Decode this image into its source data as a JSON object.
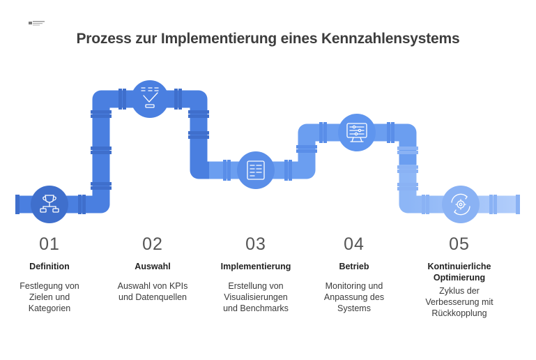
{
  "title": "Prozess zur Implementierung eines Kennzahlensystems",
  "colors": {
    "pipe_dark": "#4a7fe0",
    "pipe_mid": "#5f95ee",
    "pipe_light": "#8db6f6",
    "pipe_lightest": "#aecbfa",
    "icon_stroke": "#ffffff",
    "text": "#333333"
  },
  "steps": [
    {
      "number": "01",
      "heading": "Definition",
      "description": "Festlegung von Zielen und Kategorien",
      "icon": "trophy-flowchart-icon"
    },
    {
      "number": "02",
      "heading": "Auswahl",
      "description": "Auswahl von KPIs und Datenquellen",
      "icon": "checklist-selection-icon"
    },
    {
      "number": "03",
      "heading": "Implementierung",
      "description": "Erstellung von Visualisierungen und Benchmarks",
      "icon": "document-list-icon"
    },
    {
      "number": "04",
      "heading": "Betrieb",
      "description": "Monitoring und Anpassung des Systems",
      "icon": "monitor-sliders-icon"
    },
    {
      "number": "05",
      "heading": "Kontinuierliche Optimierung",
      "description": "Zyklus der Verbesserung mit Rückkopplung",
      "icon": "gear-cycle-icon"
    }
  ]
}
